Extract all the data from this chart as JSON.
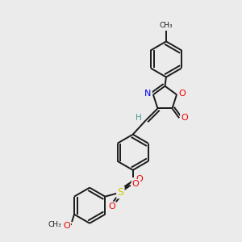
{
  "background_color": "#ebebeb",
  "bond_color": "#1a1a1a",
  "atom_colors": {
    "N": "#0000ee",
    "O": "#ee0000",
    "S": "#cccc00",
    "H": "#4a9a9a",
    "C": "#1a1a1a"
  },
  "lw": 1.4,
  "fs": 8.0,
  "xlim": [
    0,
    10
  ],
  "ylim": [
    0,
    10
  ]
}
